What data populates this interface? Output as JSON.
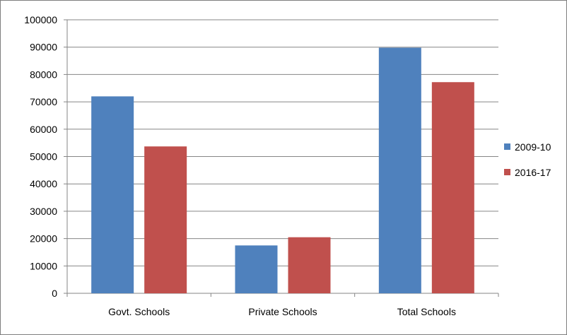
{
  "chart_data": {
    "type": "bar",
    "title": "",
    "xlabel": "",
    "ylabel": "",
    "categories": [
      "Govt. Schools",
      "Private Schools",
      "Total Schools"
    ],
    "series": [
      {
        "name": "2009-10",
        "values": [
          72000,
          17500,
          89800
        ],
        "color": "#4f81bd"
      },
      {
        "name": "2016-17",
        "values": [
          53700,
          20500,
          77200
        ],
        "color": "#c0504d"
      }
    ],
    "ylim": [
      0,
      100000
    ],
    "yticks": [
      0,
      10000,
      20000,
      30000,
      40000,
      50000,
      60000,
      70000,
      80000,
      90000,
      100000
    ],
    "grid": true,
    "legend_position": "right"
  }
}
